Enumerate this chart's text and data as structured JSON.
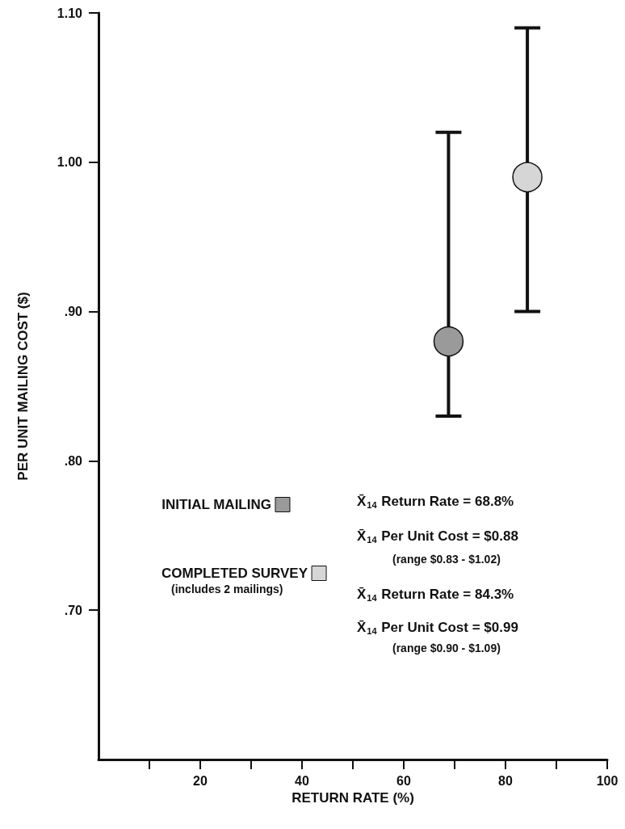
{
  "chart_data": {
    "type": "scatter",
    "xlabel": "RETURN RATE (%)",
    "ylabel": "PER UNIT MAILING COST ($)",
    "xlim": [
      0,
      100
    ],
    "xticks": [
      {
        "value": 10,
        "label": null
      },
      20,
      {
        "value": 30,
        "label": null
      },
      40,
      {
        "value": 50,
        "label": null
      },
      60,
      {
        "value": 70,
        "label": null
      },
      80,
      {
        "value": 90,
        "label": null
      },
      100
    ],
    "ylim": [
      0.6,
      1.1
    ],
    "yticks": [
      {
        "value": 0.7,
        "label": ".70"
      },
      {
        "value": 0.8,
        "label": ".80"
      },
      {
        "value": 0.9,
        "label": ".90"
      },
      {
        "value": 1.0,
        "label": "1.00"
      },
      {
        "value": 1.1,
        "label": "1.10"
      }
    ],
    "series": [
      {
        "name": "INITIAL MAILING",
        "color": "#9a9a9a",
        "x": [
          68.8
        ],
        "values": [
          0.88
        ],
        "errors": [
          [
            0.83,
            1.02
          ]
        ]
      },
      {
        "name": "COMPLETED SURVEY",
        "color": "#d6d6d6",
        "x": [
          84.3
        ],
        "values": [
          0.99
        ],
        "errors": [
          [
            0.9,
            1.09
          ]
        ]
      }
    ],
    "annotations": [
      "X̄$_{14}$ Return Rate = 68.8%",
      "X̄$_{14}$ Per Unit Cost = $0.88",
      "(range $0.83 - $1.02)",
      "(includes 2 mailings)",
      "X̄$_{14}$ Return Rate = 84.3%",
      "X̄$_{14}$ Per Unit Cost = $0.99",
      "(range $0.90 - $1.09)"
    ],
    "legend": "bottom left",
    "grid": false,
    "marker": "circle"
  }
}
